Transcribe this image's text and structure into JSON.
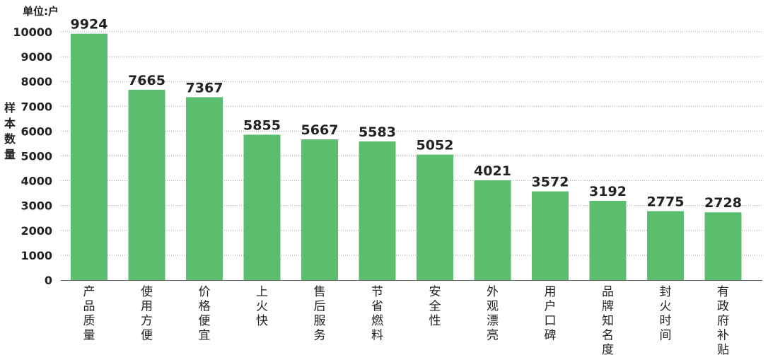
{
  "chart_data": {
    "type": "bar",
    "unit_label": "单位:户",
    "ylabel": "样本数量",
    "xlabel": "",
    "title": "",
    "categories": [
      "产品质量",
      "使用方便",
      "价格便宜",
      "上火快",
      "售后服务",
      "节省燃料",
      "安全性",
      "外观漂亮",
      "用户口碑",
      "品牌知名度",
      "封火时间",
      "有政府补贴"
    ],
    "values": [
      9924,
      7665,
      7367,
      5855,
      5667,
      5583,
      5052,
      4021,
      3572,
      3192,
      2775,
      2728
    ],
    "value_labels": [
      "9924",
      "7665",
      "7367",
      "5855",
      "5667",
      "5583",
      "5052",
      "4021",
      "3572",
      "3192",
      "2775",
      "2728"
    ],
    "y_ticks": [
      "0",
      "1000",
      "2000",
      "3000",
      "4000",
      "5000",
      "6000",
      "7000",
      "8000",
      "9000",
      "10000"
    ],
    "ylim": [
      0,
      10000
    ],
    "grid": true,
    "bar_color": "#5bbd6e",
    "grid_color": "#9a9a9a",
    "text_color": "#222222"
  }
}
